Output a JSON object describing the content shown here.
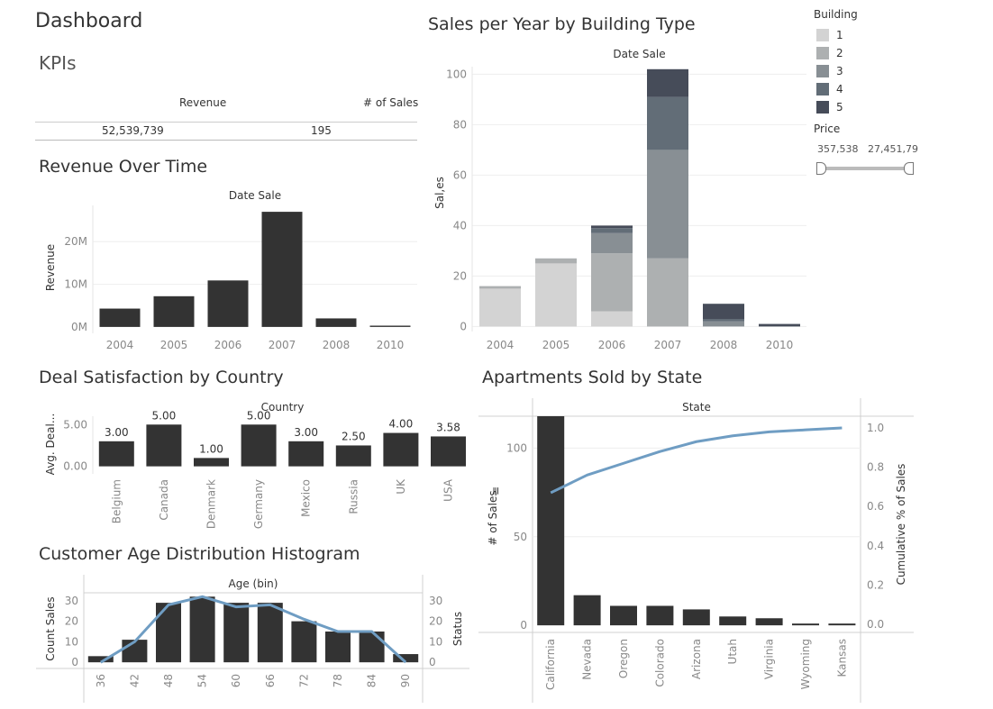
{
  "page": {
    "title": "Dashboard"
  },
  "kpis": {
    "title": "KPIs",
    "revenue_label": "Revenue",
    "sales_label": "# of Sales",
    "revenue_value": "52,539,739",
    "sales_value": "195"
  },
  "legend": {
    "title": "Building",
    "items": [
      {
        "label": "1",
        "color": "#d3d3d3"
      },
      {
        "label": "2",
        "color": "#adb0b1"
      },
      {
        "label": "3",
        "color": "#888f94"
      },
      {
        "label": "4",
        "color": "#626d77"
      },
      {
        "label": "5",
        "color": "#464c59"
      }
    ]
  },
  "price_filter": {
    "title": "Price",
    "min_label": "357,538",
    "max_label": "27,451,79"
  },
  "chart_data": [
    {
      "id": "revenue",
      "type": "bar",
      "title": "Revenue Over Time",
      "header": "Date Sale",
      "ylabel": "Revenue",
      "categories": [
        "2004",
        "2005",
        "2006",
        "2007",
        "2008",
        "2010"
      ],
      "values": [
        4300000,
        7200000,
        10900000,
        27000000,
        2000000,
        300000
      ],
      "yticks": [
        0,
        10000000,
        20000000
      ],
      "yticklabels": [
        "0M",
        "10M",
        "20M"
      ],
      "ylim": [
        -1500000,
        28500000
      ],
      "color": "#333333"
    },
    {
      "id": "sales_year",
      "type": "bar",
      "stacked": true,
      "title": "Sales per Year by Building Type",
      "header": "Date Sale",
      "ylabel": "Sal,es",
      "categories": [
        "2004",
        "2005",
        "2006",
        "2007",
        "2008",
        "2010"
      ],
      "series": [
        {
          "name": "1",
          "values": [
            15,
            25,
            6,
            0,
            0,
            0
          ],
          "color": "#d3d3d3"
        },
        {
          "name": "2",
          "values": [
            1,
            2,
            23,
            27,
            0,
            0
          ],
          "color": "#adb0b1"
        },
        {
          "name": "3",
          "values": [
            0,
            0,
            8,
            43,
            2,
            0
          ],
          "color": "#888f94"
        },
        {
          "name": "4",
          "values": [
            0,
            0,
            2,
            21,
            1,
            0
          ],
          "color": "#626d77"
        },
        {
          "name": "5",
          "values": [
            0,
            0,
            1,
            11,
            6,
            1
          ],
          "color": "#464c59"
        }
      ],
      "yticks": [
        0,
        20,
        40,
        60,
        80,
        100
      ],
      "ylim": [
        -2,
        103
      ]
    },
    {
      "id": "satisfaction",
      "type": "bar",
      "title": "Deal Satisfaction by Country",
      "header": "Country",
      "ylabel": "Avg. Deal...",
      "categories": [
        "Belgium",
        "Canada",
        "Denmark",
        "Germany",
        "Mexico",
        "Russia",
        "UK",
        "USA"
      ],
      "values": [
        3.0,
        5.0,
        1.0,
        5.0,
        3.0,
        2.5,
        4.0,
        3.58
      ],
      "value_labels": [
        "3.00",
        "5.00",
        "1.00",
        "5.00",
        "3.00",
        "2.50",
        "4.00",
        "3.58"
      ],
      "yticks": [
        0,
        5
      ],
      "yticklabels": [
        "0.00",
        "5.00"
      ],
      "ylim": [
        -0.9,
        6.0
      ],
      "color": "#333333"
    },
    {
      "id": "age_hist",
      "type": "bar",
      "title": "Customer Age Distribution Histogram",
      "header": "Age (bin)",
      "ylabel": "Count Sales",
      "ylabel_right": "Status",
      "categories": [
        "36",
        "42",
        "48",
        "54",
        "60",
        "66",
        "72",
        "78",
        "84",
        "90"
      ],
      "values": [
        3,
        11,
        29,
        32,
        29,
        29,
        20,
        15,
        15,
        4
      ],
      "line": [
        0,
        10,
        28,
        32,
        27,
        28,
        21,
        15,
        15,
        0
      ],
      "yticks": [
        0,
        10,
        20,
        30
      ],
      "ylim": [
        -3,
        33
      ],
      "color": "#333333",
      "line_color": "#6f9dc3"
    },
    {
      "id": "state",
      "type": "bar",
      "title": "Apartments Sold by State",
      "header": "State",
      "ylabel": "# of Sales",
      "ylabel_right": "Cumulative % of Sales",
      "categories": [
        "California",
        "Nevada",
        "Oregon",
        "Colorado",
        "Arizona",
        "Utah",
        "Virginia",
        "Wyoming",
        "Kansas"
      ],
      "values": [
        118,
        17,
        11,
        11,
        9,
        5,
        4,
        1,
        1
      ],
      "cumulative": [
        0.67,
        0.76,
        0.82,
        0.88,
        0.93,
        0.96,
        0.98,
        0.99,
        1.0
      ],
      "yticks": [
        0,
        50,
        100
      ],
      "yticks_right": [
        0.0,
        0.2,
        0.4,
        0.6,
        0.8,
        1.0
      ],
      "yticklabels_right": [
        "0.0",
        "0.2",
        "0.4",
        "0.6",
        "0.8",
        "1.0"
      ],
      "ylim": [
        -4,
        118
      ],
      "color": "#333333",
      "line_color": "#6f9dc3"
    }
  ]
}
